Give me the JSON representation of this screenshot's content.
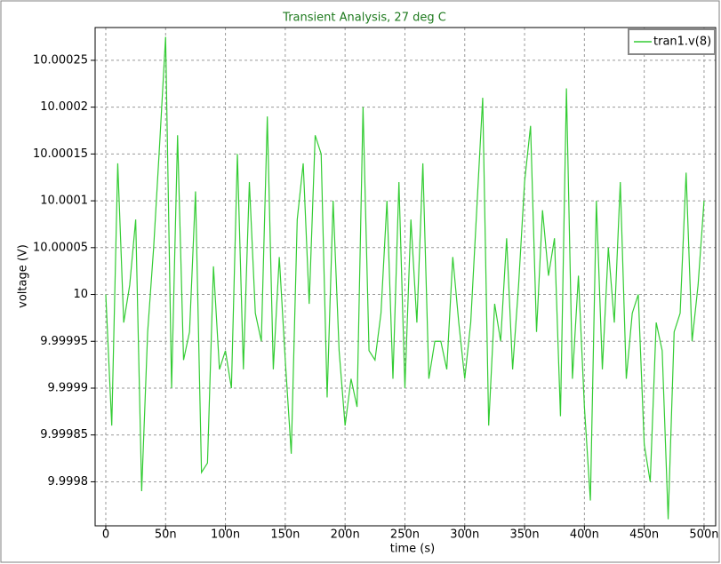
{
  "chart_data": {
    "type": "line",
    "title": "Transient Analysis, 27 deg C",
    "xlabel": "time (s)",
    "ylabel": "voltage (V)",
    "x": [
      0,
      5e-09,
      1e-08,
      1.5e-08,
      2e-08,
      2.5e-08,
      3e-08,
      3.5e-08,
      4e-08,
      4.5e-08,
      5e-08,
      5.5e-08,
      6e-08,
      6.5e-08,
      7e-08,
      7.5e-08,
      8e-08,
      8.5e-08,
      9e-08,
      9.5e-08,
      1e-07,
      1.05e-07,
      1.1e-07,
      1.15e-07,
      1.2e-07,
      1.25e-07,
      1.3e-07,
      1.35e-07,
      1.4e-07,
      1.45e-07,
      1.5e-07,
      1.55e-07,
      1.6e-07,
      1.65e-07,
      1.7e-07,
      1.75e-07,
      1.8e-07,
      1.85e-07,
      1.9e-07,
      1.95e-07,
      2e-07,
      2.05e-07,
      2.1e-07,
      2.15e-07,
      2.2e-07,
      2.25e-07,
      2.3e-07,
      2.35e-07,
      2.4e-07,
      2.45e-07,
      2.5e-07,
      2.55e-07,
      2.6e-07,
      2.65e-07,
      2.7e-07,
      2.75e-07,
      2.8e-07,
      2.85e-07,
      2.9e-07,
      2.95e-07,
      3e-07,
      3.05e-07,
      3.1e-07,
      3.15e-07,
      3.2e-07,
      3.25e-07,
      3.3e-07,
      3.35e-07,
      3.4e-07,
      3.45e-07,
      3.5e-07,
      3.55e-07,
      3.6e-07,
      3.65e-07,
      3.7e-07,
      3.75e-07,
      3.8e-07,
      3.85e-07,
      3.9e-07,
      3.95e-07,
      4e-07,
      4.05e-07,
      4.1e-07,
      4.15e-07,
      4.2e-07,
      4.25e-07,
      4.3e-07,
      4.35e-07,
      4.4e-07,
      4.45e-07,
      4.5e-07,
      4.55e-07,
      4.6e-07,
      4.65e-07,
      4.7e-07,
      4.75e-07,
      4.8e-07,
      4.85e-07,
      4.9e-07,
      4.95e-07,
      5e-07
    ],
    "series": [
      {
        "name": "tran1.v(8)",
        "color": "#33cc33",
        "values": [
          10,
          9.99986,
          10.00014,
          9.99997,
          10.00001,
          10.00008,
          9.99979,
          9.99996,
          10.00005,
          10.00016,
          10.000275,
          9.9999,
          10.00017,
          9.99993,
          9.99996,
          10.00011,
          9.99981,
          9.99982,
          10.00003,
          9.99992,
          9.99994,
          9.9999,
          10.00015,
          9.99992,
          10.00012,
          9.99998,
          9.99995,
          10.00019,
          9.99992,
          10.00004,
          9.99993,
          9.99983,
          10.00008,
          10.00014,
          9.99999,
          10.00017,
          10.00015,
          9.99989,
          10.0001,
          9.99994,
          9.99986,
          9.99991,
          9.99988,
          10.0002,
          9.99994,
          9.99993,
          9.99998,
          10.0001,
          9.99991,
          10.00012,
          9.9999,
          10.00008,
          9.99997,
          10.00014,
          9.99991,
          9.99995,
          9.99995,
          9.99992,
          10.00004,
          9.99997,
          9.99991,
          9.99997,
          10.00009,
          10.00021,
          9.99986,
          9.99999,
          9.99995,
          10.00006,
          9.99992,
          10.00001,
          10.00012,
          10.00018,
          9.99996,
          10.00009,
          10.00002,
          10.00006,
          9.99987,
          10.00022,
          9.99991,
          10.00002,
          9.99988,
          9.99978,
          10.0001,
          9.99992,
          10.00005,
          9.99997,
          10.00012,
          9.99991,
          9.99998,
          10,
          9.99984,
          9.9998,
          9.99997,
          9.99994,
          9.99976,
          9.99996,
          9.99998,
          10.00013,
          9.99995,
          10.00001,
          10.0001
        ]
      }
    ],
    "xlim": [
      -8.9e-09,
      5.097e-07
    ],
    "ylim": [
      9.999753,
      10.000285
    ],
    "xticks": [
      0,
      {
        "value": 5e-08,
        "label": "50n"
      },
      {
        "value": 1e-07,
        "label": "100n"
      },
      {
        "value": 1.5e-07,
        "label": "150n"
      },
      {
        "value": 2e-07,
        "label": "200n"
      },
      {
        "value": 2.5e-07,
        "label": "250n"
      },
      {
        "value": 3e-07,
        "label": "300n"
      },
      {
        "value": 3.5e-07,
        "label": "350n"
      },
      {
        "value": 4e-07,
        "label": "400n"
      },
      {
        "value": 4.5e-07,
        "label": "450n"
      },
      {
        "value": 5e-07,
        "label": "500n"
      }
    ],
    "yticks": [
      9.9998,
      9.99985,
      9.9999,
      9.99995,
      10,
      10.00005,
      10.0001,
      10.00015,
      10.0002,
      10.00025
    ],
    "grid": true,
    "legend": "upper right"
  }
}
